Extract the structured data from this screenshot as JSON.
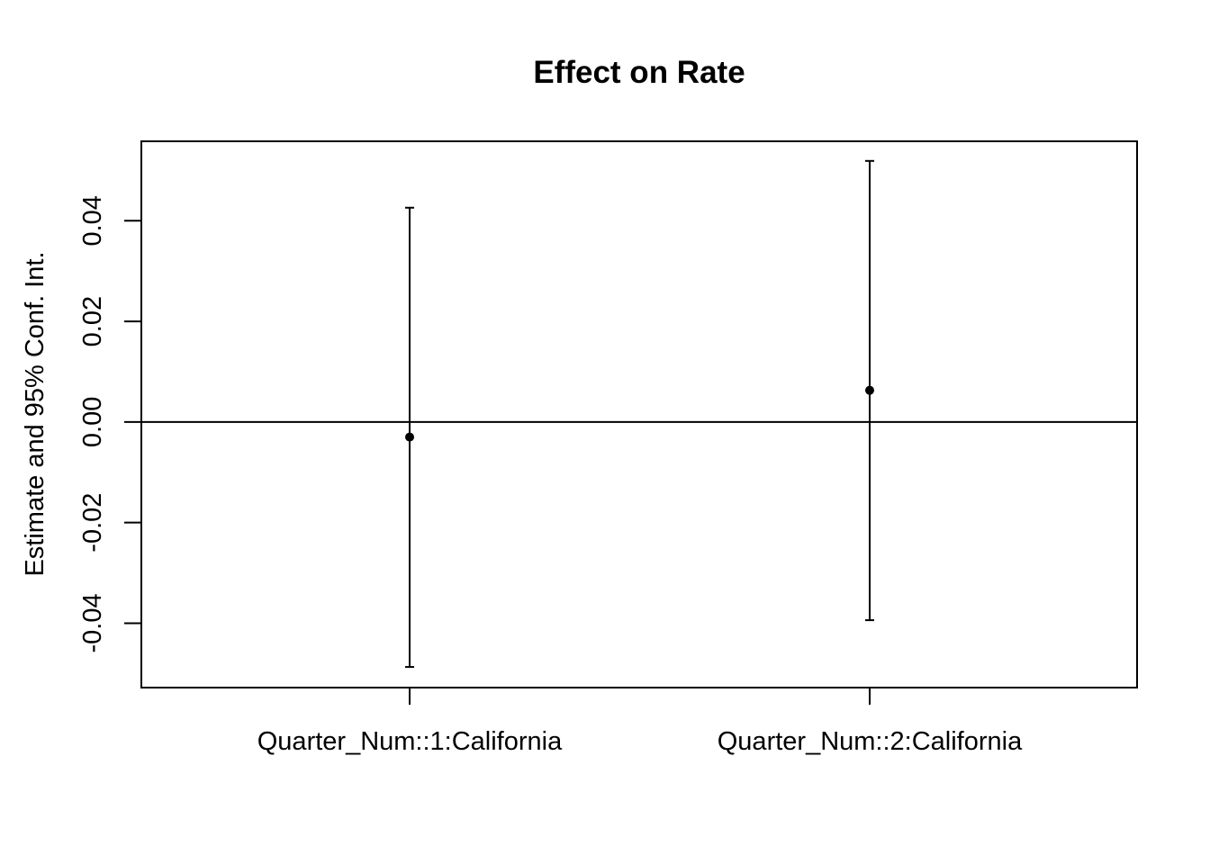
{
  "chart_data": {
    "type": "scatter",
    "subtype": "point-estimate-with-error-bars",
    "title": "Effect on Rate",
    "xlabel": "",
    "ylabel": "Estimate and 95% Conf. Int.",
    "categories": [
      "Quarter_Num::1:California",
      "Quarter_Num::2:California"
    ],
    "series": [
      {
        "name": "Estimate",
        "values": [
          -0.003,
          0.0063
        ],
        "ci_lower": [
          -0.0487,
          -0.0394
        ],
        "ci_upper": [
          0.0426,
          0.0519
        ]
      }
    ],
    "yticks": [
      -0.04,
      -0.02,
      0.0,
      0.02,
      0.04
    ],
    "ytick_labels": [
      "-0.04",
      "-0.02",
      "0.00",
      "0.02",
      "0.04"
    ],
    "ylim": [
      -0.0528,
      0.0558
    ],
    "reference_line": 0,
    "grid": false,
    "legend": null
  },
  "colors": {
    "foreground": "#000000",
    "background": "#ffffff"
  }
}
